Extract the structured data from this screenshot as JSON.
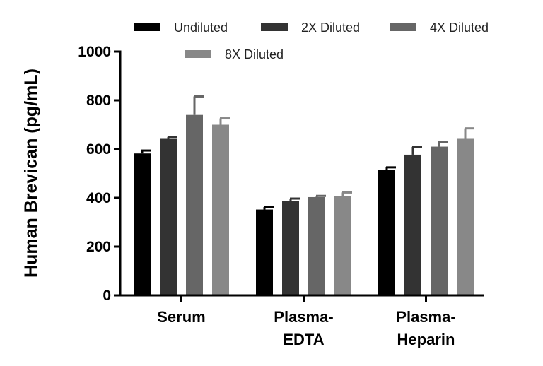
{
  "chart_data": {
    "type": "bar",
    "title": "",
    "xlabel": "",
    "ylabel": "Human Brevican (pg/mL)",
    "ylim": [
      0,
      1000
    ],
    "yticks": [
      "0",
      "200",
      "400",
      "600",
      "800",
      "1000"
    ],
    "categories": [
      [
        "Serum"
      ],
      [
        "Plasma-",
        "EDTA"
      ],
      [
        "Plasma-",
        "Heparin"
      ]
    ],
    "series": [
      {
        "name": "Undiluted",
        "color": "#000000",
        "values": [
          582,
          352,
          515
        ],
        "errors": [
          12,
          10,
          10
        ]
      },
      {
        "name": "2X Diluted",
        "color": "#333333",
        "values": [
          642,
          387,
          577
        ],
        "errors": [
          8,
          10,
          32
        ]
      },
      {
        "name": "4X Diluted",
        "color": "#666666",
        "values": [
          740,
          403,
          610
        ],
        "errors": [
          76,
          5,
          20
        ]
      },
      {
        "name": "8X Diluted",
        "color": "#888888",
        "values": [
          700,
          407,
          642
        ],
        "errors": [
          26,
          15,
          43
        ]
      }
    ],
    "grid": false,
    "legend_position": "top"
  }
}
